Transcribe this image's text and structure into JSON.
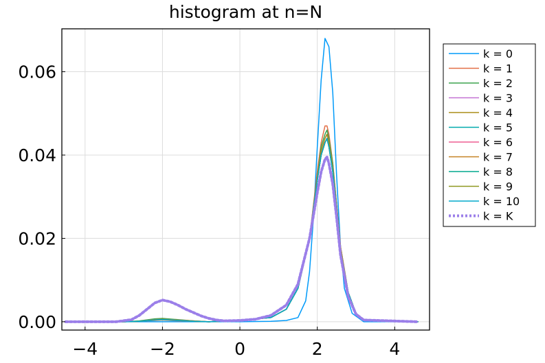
{
  "chart_data": {
    "type": "line",
    "title": "histogram at n=N",
    "xlabel": "",
    "ylabel": "",
    "xlim": [
      -4.6,
      4.9
    ],
    "ylim": [
      -0.002,
      0.0703
    ],
    "xticks": [
      -4,
      -2,
      0,
      2,
      4
    ],
    "xtick_labels": [
      "−4",
      "−2",
      "0",
      "2",
      "4"
    ],
    "yticks": [
      0.0,
      0.02,
      0.04,
      0.06
    ],
    "ytick_labels": [
      "0.00",
      "0.02",
      "0.04",
      "0.06"
    ],
    "grid": true,
    "legend": "outside-right",
    "series": [
      {
        "name": "k = 0",
        "color": "#009af9",
        "width": 1.5,
        "dash": "",
        "x": [
          -4.5,
          -3,
          -2,
          -1,
          0,
          0.8,
          1.2,
          1.5,
          1.7,
          1.8,
          1.9,
          2.0,
          2.1,
          2.2,
          2.3,
          2.4,
          2.5,
          2.6,
          2.7,
          2.9,
          3.2,
          4.6
        ],
        "y": [
          0,
          0,
          0,
          0,
          0,
          0.0001,
          0.0003,
          0.001,
          0.005,
          0.012,
          0.025,
          0.042,
          0.058,
          0.068,
          0.066,
          0.055,
          0.035,
          0.018,
          0.008,
          0.002,
          0,
          0
        ]
      },
      {
        "name": "k = 1",
        "color": "#e26f46",
        "width": 1.5,
        "dash": "",
        "x": [
          -4.5,
          -3,
          -2.6,
          -2.2,
          -2.0,
          -1.6,
          -1.2,
          -0.8,
          0,
          0.8,
          1.2,
          1.5,
          1.8,
          2.0,
          2.1,
          2.2,
          2.25,
          2.3,
          2.4,
          2.5,
          2.6,
          2.8,
          3.0,
          3.2,
          4.6
        ],
        "y": [
          0,
          0,
          0.0001,
          0.0003,
          0.0004,
          0.0002,
          0.0001,
          0,
          0.0003,
          0.001,
          0.003,
          0.008,
          0.02,
          0.036,
          0.043,
          0.047,
          0.047,
          0.045,
          0.038,
          0.028,
          0.018,
          0.007,
          0.002,
          0.0005,
          0
        ]
      },
      {
        "name": "k = 2",
        "color": "#3da44d",
        "width": 1.5,
        "dash": "",
        "x": [
          -4.5,
          -3,
          -2.6,
          -2.2,
          -2.0,
          -1.6,
          -1.2,
          -0.8,
          0,
          0.8,
          1.2,
          1.5,
          1.8,
          2.0,
          2.1,
          2.2,
          2.25,
          2.3,
          2.4,
          2.5,
          2.6,
          2.8,
          3.0,
          3.2,
          4.6
        ],
        "y": [
          0,
          0,
          0.0002,
          0.0007,
          0.0008,
          0.0005,
          0.0002,
          0,
          0.0003,
          0.001,
          0.003,
          0.008,
          0.02,
          0.035,
          0.042,
          0.045,
          0.046,
          0.044,
          0.038,
          0.028,
          0.018,
          0.007,
          0.002,
          0.0005,
          0
        ]
      },
      {
        "name": "k = 3",
        "color": "#c271d2",
        "width": 1.5,
        "dash": "",
        "x": [
          -4.5,
          -3,
          -2.6,
          -2.2,
          -2.0,
          -1.6,
          -1.2,
          -0.8,
          0,
          0.8,
          1.2,
          1.5,
          1.8,
          2.0,
          2.1,
          2.2,
          2.25,
          2.3,
          2.4,
          2.5,
          2.6,
          2.8,
          3.0,
          3.2,
          4.6
        ],
        "y": [
          0,
          0,
          0.0001,
          0.0005,
          0.0006,
          0.0004,
          0.0002,
          0,
          0.0003,
          0.001,
          0.003,
          0.008,
          0.02,
          0.035,
          0.041,
          0.044,
          0.045,
          0.043,
          0.037,
          0.028,
          0.018,
          0.007,
          0.002,
          0.0005,
          0
        ]
      },
      {
        "name": "k = 4",
        "color": "#ac8d18",
        "width": 1.5,
        "dash": "",
        "x": [
          -4.5,
          -3,
          -2.6,
          -2.2,
          -2.0,
          -1.6,
          -1.2,
          -0.8,
          0,
          0.8,
          1.2,
          1.5,
          1.8,
          2.0,
          2.1,
          2.2,
          2.25,
          2.3,
          2.4,
          2.5,
          2.6,
          2.8,
          3.0,
          3.2,
          4.6
        ],
        "y": [
          0,
          0,
          0.0001,
          0.0005,
          0.0006,
          0.0004,
          0.0002,
          0,
          0.0003,
          0.001,
          0.003,
          0.008,
          0.02,
          0.035,
          0.041,
          0.044,
          0.045,
          0.043,
          0.037,
          0.028,
          0.018,
          0.007,
          0.002,
          0.0005,
          0
        ]
      },
      {
        "name": "k = 5",
        "color": "#00a9ad",
        "width": 1.5,
        "dash": "",
        "x": [
          -4.5,
          -3,
          -2.6,
          -2.2,
          -2.0,
          -1.6,
          -1.2,
          -0.8,
          0,
          0.8,
          1.2,
          1.5,
          1.8,
          2.0,
          2.1,
          2.2,
          2.25,
          2.3,
          2.4,
          2.5,
          2.6,
          2.8,
          3.0,
          3.2,
          4.6
        ],
        "y": [
          0,
          0,
          0.0001,
          0.0004,
          0.0005,
          0.0003,
          0.0001,
          0,
          0.0003,
          0.001,
          0.003,
          0.008,
          0.02,
          0.034,
          0.04,
          0.043,
          0.044,
          0.042,
          0.036,
          0.027,
          0.017,
          0.007,
          0.002,
          0.0005,
          0
        ]
      },
      {
        "name": "k = 6",
        "color": "#ed5d92",
        "width": 1.5,
        "dash": "",
        "x": [
          -4.5,
          -3,
          -2.6,
          -2.2,
          -2.0,
          -1.6,
          -1.2,
          -0.8,
          0,
          0.8,
          1.2,
          1.5,
          1.8,
          2.0,
          2.1,
          2.2,
          2.25,
          2.3,
          2.4,
          2.5,
          2.6,
          2.8,
          3.0,
          3.2,
          4.6
        ],
        "y": [
          0,
          0,
          0.0001,
          0.0004,
          0.0005,
          0.0003,
          0.0001,
          0,
          0.0003,
          0.001,
          0.003,
          0.008,
          0.02,
          0.034,
          0.04,
          0.043,
          0.044,
          0.042,
          0.036,
          0.027,
          0.017,
          0.007,
          0.002,
          0.0005,
          0
        ]
      },
      {
        "name": "k = 7",
        "color": "#c68225",
        "width": 1.5,
        "dash": "",
        "x": [
          -4.5,
          -3,
          -2.6,
          -2.2,
          -2.0,
          -1.6,
          -1.2,
          -0.8,
          0,
          0.8,
          1.2,
          1.5,
          1.8,
          2.0,
          2.1,
          2.2,
          2.25,
          2.3,
          2.4,
          2.5,
          2.6,
          2.8,
          3.0,
          3.2,
          4.6
        ],
        "y": [
          0,
          0,
          0.0001,
          0.0004,
          0.0005,
          0.0003,
          0.0001,
          0,
          0.0003,
          0.001,
          0.003,
          0.008,
          0.02,
          0.034,
          0.04,
          0.043,
          0.044,
          0.042,
          0.036,
          0.027,
          0.017,
          0.007,
          0.002,
          0.0005,
          0
        ]
      },
      {
        "name": "k = 8",
        "color": "#00a98d",
        "width": 1.5,
        "dash": "",
        "x": [
          -4.5,
          -3,
          -2.6,
          -2.2,
          -2.0,
          -1.6,
          -1.2,
          -0.8,
          0,
          0.8,
          1.2,
          1.5,
          1.8,
          2.0,
          2.1,
          2.2,
          2.25,
          2.3,
          2.4,
          2.5,
          2.6,
          2.8,
          3.0,
          3.2,
          4.6
        ],
        "y": [
          0,
          0,
          0.0001,
          0.0004,
          0.0005,
          0.0003,
          0.0001,
          0,
          0.0003,
          0.001,
          0.003,
          0.008,
          0.02,
          0.034,
          0.04,
          0.043,
          0.044,
          0.042,
          0.036,
          0.027,
          0.017,
          0.007,
          0.002,
          0.0005,
          0
        ]
      },
      {
        "name": "k = 9",
        "color": "#8e971e",
        "width": 1.5,
        "dash": "",
        "x": [
          -4.5,
          -3,
          -2.6,
          -2.2,
          -2.0,
          -1.6,
          -1.2,
          -0.8,
          0,
          0.8,
          1.2,
          1.5,
          1.8,
          2.0,
          2.1,
          2.2,
          2.25,
          2.3,
          2.4,
          2.5,
          2.6,
          2.8,
          3.0,
          3.2,
          4.6
        ],
        "y": [
          0,
          0,
          0.0001,
          0.0004,
          0.0005,
          0.0003,
          0.0001,
          0,
          0.0003,
          0.001,
          0.003,
          0.008,
          0.02,
          0.034,
          0.04,
          0.043,
          0.044,
          0.042,
          0.036,
          0.027,
          0.017,
          0.007,
          0.002,
          0.0005,
          0
        ]
      },
      {
        "name": "k = 10",
        "color": "#00a8cb",
        "width": 1.5,
        "dash": "",
        "x": [
          -4.5,
          -3,
          -2.6,
          -2.2,
          -2.0,
          -1.6,
          -1.2,
          -0.8,
          0,
          0.8,
          1.2,
          1.5,
          1.8,
          2.0,
          2.1,
          2.2,
          2.25,
          2.3,
          2.4,
          2.5,
          2.6,
          2.8,
          3.0,
          3.2,
          4.6
        ],
        "y": [
          0,
          0,
          0.0001,
          0.0004,
          0.0005,
          0.0003,
          0.0001,
          0,
          0.0003,
          0.001,
          0.003,
          0.008,
          0.02,
          0.034,
          0.04,
          0.043,
          0.044,
          0.042,
          0.036,
          0.027,
          0.017,
          0.007,
          0.002,
          0.0005,
          0
        ]
      },
      {
        "name": "k = K",
        "color": "#9b7fe9",
        "width": 4,
        "dash": "3,3",
        "x": [
          -4.5,
          -3.2,
          -2.8,
          -2.6,
          -2.4,
          -2.2,
          -2.0,
          -1.8,
          -1.6,
          -1.4,
          -1.2,
          -1.0,
          -0.8,
          -0.6,
          -0.4,
          0,
          0.4,
          0.8,
          1.2,
          1.5,
          1.8,
          2.0,
          2.1,
          2.2,
          2.25,
          2.3,
          2.4,
          2.5,
          2.6,
          2.8,
          3.0,
          3.2,
          4.6
        ],
        "y": [
          0,
          0,
          0.0005,
          0.0015,
          0.003,
          0.0045,
          0.0052,
          0.0048,
          0.004,
          0.003,
          0.0022,
          0.0014,
          0.0008,
          0.0004,
          0.0002,
          0.0003,
          0.0006,
          0.0015,
          0.004,
          0.009,
          0.02,
          0.031,
          0.036,
          0.039,
          0.0395,
          0.038,
          0.033,
          0.025,
          0.016,
          0.006,
          0.0018,
          0.0004,
          0
        ]
      }
    ]
  }
}
